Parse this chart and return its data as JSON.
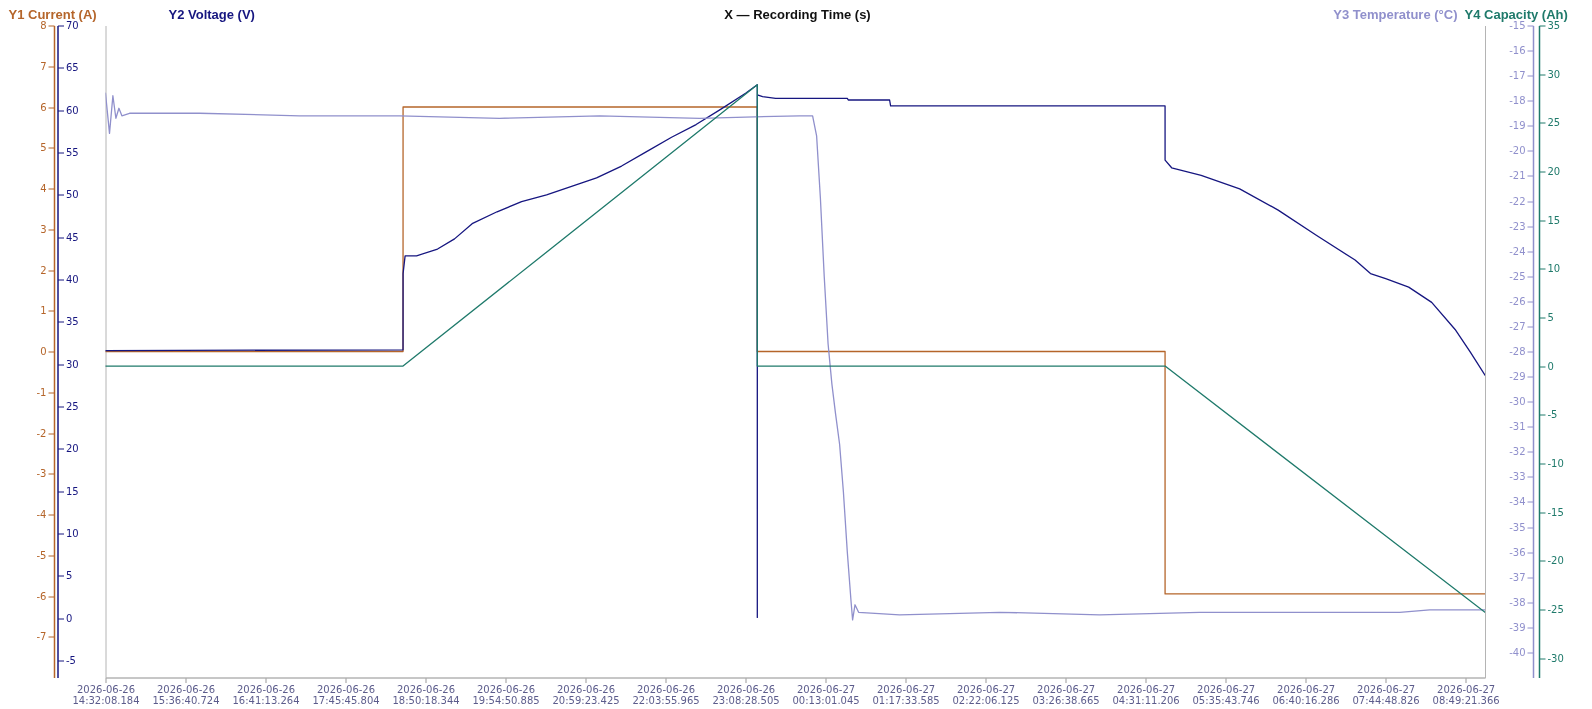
{
  "chart_data": [
    {
      "type": "line",
      "xlabel": "X — Recording Time (s)",
      "ylabel": "Y1 Current (A)",
      "y2label": "Y2 Voltage (V)",
      "y3label": "Y3 Temperature (°C)",
      "xlim": [
        "2026-06-26T14:32:08.184",
        "2026-06-27T09:05:00"
      ],
      "xticks": [
        {
          "value": "2026-06-26T14:32:08.184",
          "label": "2026-06-26\n14:32:08.184"
        },
        {
          "value": "2026-06-26T15:36:40.724",
          "label": "2026-06-26\n15:36:40.724"
        },
        {
          "value": "2026-06-26T16:41:13.264",
          "label": "2026-06-26\n16:41:13.264"
        },
        {
          "value": "2026-06-26T17:45:45.804",
          "label": "2026-06-26\n17:45:45.804"
        },
        {
          "value": "2026-06-26T18:50:18.344",
          "label": "2026-06-26\n18:50:18.344"
        },
        {
          "value": "2026-06-26T19:54:50.885",
          "label": "2026-06-26\n19:54:50.885"
        },
        {
          "value": "2026-06-26T20:59:23.425",
          "label": "2026-06-26\n20:59:23.425"
        },
        {
          "value": "2026-06-26T22:03:55.965",
          "label": "2026-06-26\n22:03:55.965"
        },
        {
          "value": "2026-06-26T23:08:28.505",
          "label": "2026-06-26\n23:08:28.505"
        },
        {
          "value": "2026-06-27T00:13:01.045",
          "label": "2026-06-27\n00:13:01.045"
        },
        {
          "value": "2026-06-27T01:17:33.585",
          "label": "2026-06-27\n01:17:33.585"
        },
        {
          "value": "2026-06-27T02:22:06.125",
          "label": "2026-06-27\n02:22:06.125"
        },
        {
          "value": "2026-06-27T03:26:38.665",
          "label": "2026-06-27\n03:26:38.665"
        },
        {
          "value": "2026-06-27T04:31:11.206",
          "label": "2026-06-27\n04:31:11.206"
        },
        {
          "value": "2026-06-27T05:35:43.746",
          "label": "2026-06-27\n05:35:43.746"
        },
        {
          "value": "2026-06-27T06:40:16.286",
          "label": "2026-06-27\n06:40:16.286"
        },
        {
          "value": "2026-06-27T07:44:48.826",
          "label": "2026-06-27\n07:44:48.826"
        },
        {
          "value": "2026-06-27T08:49:21.366",
          "label": "2026-06-27\n08:49:21.366"
        }
      ],
      "ylim": [
        -8,
        8
      ],
      "yticks": [
        -7,
        -6,
        -5,
        -4,
        -3,
        -2,
        -1,
        0,
        1,
        2,
        3,
        4,
        5,
        6,
        7,
        8
      ],
      "y2lim": [
        -7,
        70
      ],
      "y2ticks": [
        -5,
        0,
        5,
        10,
        15,
        20,
        25,
        30,
        35,
        40,
        45,
        50,
        55,
        60,
        65,
        70
      ],
      "y3lim": [
        -41,
        -15
      ],
      "y3ticks": [
        -40,
        -39,
        -38,
        -37,
        -36,
        -35,
        -34,
        -33,
        -32,
        -31,
        -30,
        -29,
        -28,
        -27,
        -26,
        -25,
        -24,
        -23,
        -22,
        -21,
        -20,
        -19,
        -18,
        -17,
        -16,
        -15
      ],
      "series": [
        {
          "color": "#b5652a",
          "axis": "y",
          "x": [
            "2026-06-26T14:32:08.184",
            "2026-06-26T18:32:10",
            "2026-06-26T18:32:11",
            "2026-06-26T23:17:57",
            "2026-06-26T23:17:58",
            "2026-06-27T04:46:54",
            "2026-06-27T04:46:55",
            "2026-06-27T09:05:00"
          ],
          "values": [
            0,
            0,
            6,
            6,
            0,
            0,
            -5.95,
            -5.95
          ]
        },
        {
          "color": "#161680",
          "axis": "y2",
          "x": [
            "2026-06-26T14:32:08.184",
            "2026-06-26T18:32:10",
            "2026-06-26T18:32:11",
            "2026-06-26T18:33:50",
            "2026-06-26T18:43:04",
            "2026-06-26T19:00:00",
            "2026-06-26T19:13:43",
            "2026-06-26T19:27:55",
            "2026-06-26T19:48:01",
            "2026-06-26T20:07:47",
            "2026-06-26T20:27:57",
            "2026-06-26T20:48:07",
            "2026-06-26T21:08:17",
            "2026-06-26T21:28:28",
            "2026-06-26T21:48:38",
            "2026-06-26T22:08:48",
            "2026-06-26T22:28:34",
            "2026-06-26T22:48:20",
            "2026-06-26T23:08:30",
            "2026-06-26T23:17:57",
            "2026-06-26T23:17:58",
            "2026-06-26T23:17:59",
            "2026-06-26T23:22:13",
            "2026-06-26T23:32:43",
            "2026-06-27T00:30:34",
            "2026-06-27T00:31:22",
            "2026-06-27T01:04:41",
            "2026-06-27T01:05:30",
            "2026-06-27T04:46:54",
            "2026-06-27T04:46:55",
            "2026-06-27T04:52:13",
            "2026-06-27T05:16:01",
            "2026-06-27T05:47:05",
            "2026-06-27T06:18:09",
            "2026-06-27T06:49:13",
            "2026-06-27T07:20:11",
            "2026-06-27T07:32:37",
            "2026-06-27T07:44:53",
            "2026-06-27T08:03:26",
            "2026-06-27T08:22:00",
            "2026-06-27T08:40:53",
            "2026-06-27T08:53:18",
            "2026-06-27T09:05:00"
          ],
          "values": [
            31.6,
            31.7,
            40.7,
            42.8,
            42.8,
            43.6,
            44.8,
            46.6,
            48.0,
            49.2,
            50.0,
            51.0,
            52.0,
            53.4,
            55.1,
            56.8,
            58.3,
            60.1,
            62.0,
            63.0,
            0.1,
            61.8,
            61.6,
            61.4,
            61.4,
            61.2,
            61.2,
            60.5,
            60.5,
            54.1,
            53.2,
            52.3,
            50.7,
            48.2,
            45.2,
            42.3,
            40.7,
            40.1,
            39.1,
            37.3,
            34.1,
            31.4,
            28.7
          ]
        },
        {
          "color": "#9090cc",
          "axis": "y3",
          "x": [
            "2026-06-26T14:32:08.184",
            "2026-06-26T14:35:22",
            "2026-06-26T14:38:06",
            "2026-06-26T14:40:31",
            "2026-06-26T14:42:57",
            "2026-06-26T14:45:22",
            "2026-06-26T14:51:30",
            "2026-06-26T15:47:59",
            "2026-06-26T17:08:40",
            "2026-06-26T18:29:21",
            "2026-06-26T19:50:02",
            "2026-06-26T21:10:43",
            "2026-06-26T22:31:24",
            "2026-06-26T23:52:05",
            "2026-06-27T00:02:34",
            "2026-06-27T00:05:48",
            "2026-06-27T00:08:52",
            "2026-06-27T00:11:56",
            "2026-06-27T00:15:04",
            "2026-06-27T00:18:08",
            "2026-06-27T00:21:07",
            "2026-06-27T00:24:21",
            "2026-06-27T00:27:25",
            "2026-06-27T00:30:34",
            "2026-06-27T00:33:38",
            "2026-06-27T00:34:50",
            "2026-06-27T00:36:46",
            "2026-06-27T00:39:41",
            "2026-06-27T01:12:46",
            "2026-06-27T02:33:27",
            "2026-06-27T03:54:08",
            "2026-06-27T05:14:49",
            "2026-06-27T06:35:30",
            "2026-06-27T07:56:11",
            "2026-06-27T08:20:23",
            "2026-06-27T09:05:00"
          ],
          "values": [
            -17.7,
            -19.3,
            -17.8,
            -18.7,
            -18.3,
            -18.6,
            -18.5,
            -18.5,
            -18.6,
            -18.6,
            -18.7,
            -18.6,
            -18.7,
            -18.6,
            -18.6,
            -19.4,
            -21.9,
            -25.0,
            -27.7,
            -29.3,
            -30.5,
            -31.7,
            -33.6,
            -36.0,
            -38.0,
            -38.7,
            -38.1,
            -38.4,
            -38.5,
            -38.4,
            -38.5,
            -38.4,
            -38.4,
            -38.4,
            -38.3,
            -38.3
          ]
        }
      ]
    },
    {
      "type": "line",
      "ylabel": "Y4 Capacity (Ah)",
      "tick_labels": "y",
      "xlim": [
        "2026-06-26T14:32:08.184",
        "2026-06-27T09:05:00"
      ],
      "ylim": [
        -32,
        35
      ],
      "yticks": [
        -30,
        -25,
        -20,
        -15,
        -10,
        -5,
        0,
        5,
        10,
        15,
        20,
        25,
        30,
        35
      ],
      "series": [
        {
          "color": "#1f7a6b",
          "x": [
            "2026-06-26T14:32:08.184",
            "2026-06-26T18:32:10",
            "2026-06-26T23:17:57",
            "2026-06-26T23:17:58",
            "2026-06-27T04:46:54",
            "2026-06-27T09:05:00"
          ],
          "values": [
            0,
            0,
            28.9,
            0,
            0,
            -25.3
          ]
        }
      ]
    }
  ]
}
